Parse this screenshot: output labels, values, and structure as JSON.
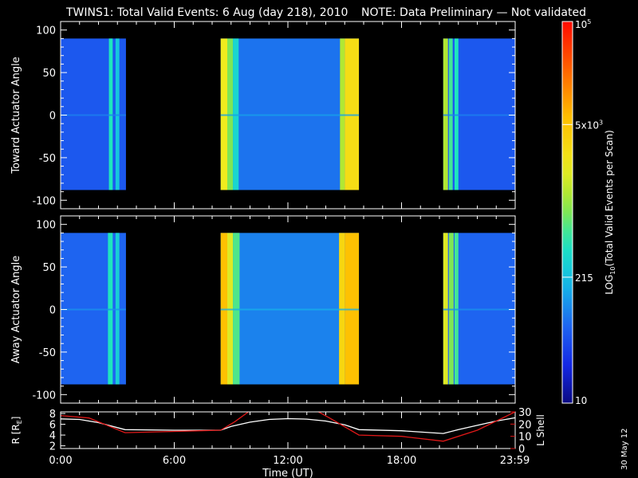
{
  "header": {
    "title": "TWINS1: Total Valid Events:  6 Aug (day 218), 2010",
    "note": "NOTE: Data Preliminary — Not validated",
    "note_color": "#ff2020"
  },
  "side_date": "30 May 12",
  "chart_data": [
    {
      "type": "heatmap",
      "name": "toward",
      "ylabel": "Toward Actuator Angle",
      "ylim": [
        -110,
        110
      ],
      "yticks": [
        100,
        50,
        0,
        -50,
        -100
      ],
      "data_yrange": [
        -88,
        90
      ],
      "xlim": [
        0,
        24
      ],
      "segments": [
        {
          "x0": 0.0,
          "x1": 3.45,
          "base": 0.18,
          "stripes": [
            {
              "x0": 2.55,
              "x1": 2.75,
              "level": 0.42
            },
            {
              "x0": 2.9,
              "x1": 3.1,
              "level": 0.34
            }
          ]
        },
        {
          "x0": 8.45,
          "x1": 15.75,
          "base": 0.22,
          "stripes": [
            {
              "x0": 8.45,
              "x1": 8.8,
              "level": 0.62
            },
            {
              "x0": 8.8,
              "x1": 9.1,
              "level": 0.5
            },
            {
              "x0": 9.1,
              "x1": 9.4,
              "level": 0.38
            },
            {
              "x0": 14.75,
              "x1": 15.0,
              "level": 0.55
            },
            {
              "x0": 15.0,
              "x1": 15.75,
              "level": 0.66
            }
          ]
        },
        {
          "x0": 20.2,
          "x1": 24.0,
          "base": 0.18,
          "stripes": [
            {
              "x0": 20.2,
              "x1": 20.45,
              "level": 0.55
            },
            {
              "x0": 20.5,
              "x1": 20.7,
              "level": 0.45
            },
            {
              "x0": 20.8,
              "x1": 21.0,
              "level": 0.42
            }
          ]
        }
      ]
    },
    {
      "type": "heatmap",
      "name": "away",
      "ylabel": "Away Actuator Angle",
      "ylim": [
        -110,
        110
      ],
      "yticks": [
        100,
        50,
        0,
        -50,
        -100
      ],
      "data_yrange": [
        -88,
        90
      ],
      "xlim": [
        0,
        24
      ],
      "segments": [
        {
          "x0": 0.0,
          "x1": 3.45,
          "base": 0.2,
          "stripes": [
            {
              "x0": 2.5,
              "x1": 2.75,
              "level": 0.42
            },
            {
              "x0": 2.9,
              "x1": 3.1,
              "level": 0.36
            }
          ]
        },
        {
          "x0": 8.45,
          "x1": 15.75,
          "base": 0.24,
          "stripes": [
            {
              "x0": 8.45,
              "x1": 8.8,
              "level": 0.74
            },
            {
              "x0": 8.8,
              "x1": 9.1,
              "level": 0.6
            },
            {
              "x0": 9.1,
              "x1": 9.45,
              "level": 0.46
            },
            {
              "x0": 14.7,
              "x1": 15.0,
              "level": 0.68
            },
            {
              "x0": 15.0,
              "x1": 15.75,
              "level": 0.74
            }
          ]
        },
        {
          "x0": 20.2,
          "x1": 24.0,
          "base": 0.2,
          "stripes": [
            {
              "x0": 20.2,
              "x1": 20.45,
              "level": 0.6
            },
            {
              "x0": 20.5,
              "x1": 20.75,
              "level": 0.5
            },
            {
              "x0": 20.8,
              "x1": 21.0,
              "level": 0.45
            }
          ]
        }
      ]
    },
    {
      "type": "line",
      "name": "orbit",
      "ylabel": "R [R",
      "ylabel_sub": "E",
      "ylabel_end": "]",
      "ylim": [
        1.5,
        8.3
      ],
      "yticks": [
        8,
        6,
        4,
        2
      ],
      "y2label": "L Shell",
      "y2lim": [
        0,
        30
      ],
      "y2ticks": [
        30,
        20,
        10,
        0
      ],
      "series_R": {
        "x": [
          0,
          1,
          2,
          3.4,
          6,
          8.45,
          9,
          10,
          11,
          12,
          13,
          14,
          15,
          15.75,
          18,
          20.2,
          21,
          22,
          23,
          24
        ],
        "y": [
          7.0,
          6.9,
          6.3,
          5.0,
          4.9,
          4.9,
          5.6,
          6.4,
          6.9,
          7.05,
          6.95,
          6.6,
          5.9,
          5.0,
          4.8,
          4.3,
          5.0,
          5.8,
          6.6,
          7.2
        ]
      },
      "series_L": {
        "x": [
          0,
          1.5,
          3.4,
          8.45,
          9.2,
          10.0,
          13.5,
          14.2,
          15.75,
          18,
          20.2,
          22,
          24
        ],
        "y": [
          27,
          25,
          13,
          15,
          22,
          31,
          31,
          25,
          11,
          10,
          6,
          15,
          30
        ]
      },
      "xticks": [
        "0:00",
        "6:00",
        "12:00",
        "18:00",
        "23:59"
      ],
      "xtick_values": [
        0,
        6,
        12,
        18,
        23.98
      ],
      "xlabel": "Time (UT)",
      "R_color": "#ffffff",
      "L_color": "#e01818"
    }
  ],
  "colorbar": {
    "label": "LOG",
    "label_sub": "10",
    "label_rest": "(Total Valid Events per Scan)",
    "ticks": [
      {
        "mant": "10",
        "exp": "5",
        "pos": 1.0
      },
      {
        "mant": "5x10",
        "exp": "3",
        "pos": 0.73
      },
      {
        "mant": "215",
        "exp": "",
        "pos": 0.33
      },
      {
        "mant": "10",
        "exp": "",
        "pos": 0.0
      }
    ]
  }
}
